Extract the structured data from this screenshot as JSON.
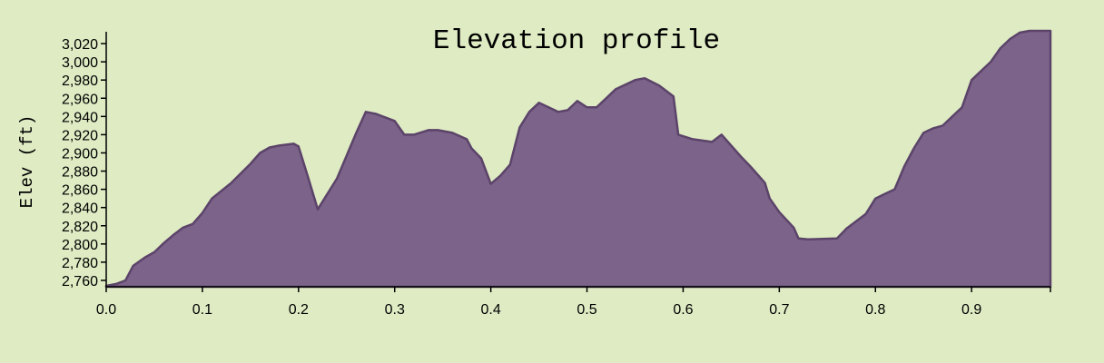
{
  "chart_data": {
    "type": "area",
    "title": "Elevation profile",
    "xlabel": "",
    "ylabel": "Elev (ft)",
    "xlim": [
      0,
      0.982
    ],
    "ylim": [
      2753,
      3033
    ],
    "grid": false,
    "x_ticks": [
      "0.0",
      "0.1",
      "0.2",
      "0.3",
      "0.4",
      "0.5",
      "0.6",
      "0.7",
      "0.8",
      "0.9"
    ],
    "x_tick_values": [
      0,
      0.1,
      0.2,
      0.3,
      0.4,
      0.5,
      0.6,
      0.7,
      0.8,
      0.9
    ],
    "y_ticks": [
      "2,760",
      "2,780",
      "2,800",
      "2,820",
      "2,840",
      "2,860",
      "2,880",
      "2,900",
      "2,920",
      "2,940",
      "2,960",
      "2,980",
      "3,000",
      "3,020"
    ],
    "y_tick_values": [
      2760,
      2780,
      2800,
      2820,
      2840,
      2860,
      2880,
      2900,
      2920,
      2940,
      2960,
      2980,
      3000,
      3020
    ],
    "colors": {
      "fill": "#7b6389",
      "stroke": "#5b4369",
      "background": "#deebc3"
    },
    "series": [
      {
        "x": [
          0.0,
          0.01,
          0.02,
          0.028,
          0.04,
          0.05,
          0.06,
          0.07,
          0.08,
          0.09,
          0.1,
          0.11,
          0.13,
          0.15,
          0.16,
          0.17,
          0.18,
          0.195,
          0.2,
          0.21,
          0.22,
          0.24,
          0.26,
          0.27,
          0.28,
          0.295,
          0.3,
          0.31,
          0.32,
          0.335,
          0.345,
          0.36,
          0.375,
          0.38,
          0.39,
          0.4,
          0.41,
          0.42,
          0.43,
          0.44,
          0.45,
          0.47,
          0.48,
          0.49,
          0.5,
          0.51,
          0.52,
          0.53,
          0.55,
          0.56,
          0.575,
          0.58,
          0.59,
          0.595,
          0.61,
          0.63,
          0.64,
          0.66,
          0.67,
          0.685,
          0.69,
          0.7,
          0.715,
          0.72,
          0.73,
          0.76,
          0.77,
          0.79,
          0.8,
          0.81,
          0.82,
          0.83,
          0.84,
          0.85,
          0.86,
          0.87,
          0.88,
          0.89,
          0.9,
          0.91,
          0.92,
          0.93,
          0.94,
          0.95,
          0.96,
          0.97,
          0.975,
          0.982
        ],
        "y": [
          2754,
          2756,
          2760,
          2776,
          2785,
          2791,
          2801,
          2810,
          2818,
          2822,
          2834,
          2850,
          2867,
          2888,
          2900,
          2906,
          2908,
          2910,
          2907,
          2873,
          2838,
          2872,
          2922,
          2945,
          2943,
          2937,
          2935,
          2920,
          2920,
          2925,
          2925,
          2922,
          2915,
          2905,
          2894,
          2866,
          2875,
          2887,
          2928,
          2945,
          2955,
          2945,
          2947,
          2957,
          2950,
          2950,
          2960,
          2970,
          2980,
          2982,
          2974,
          2970,
          2962,
          2920,
          2915,
          2912,
          2920,
          2896,
          2885,
          2867,
          2850,
          2835,
          2818,
          2806,
          2805,
          2806,
          2817,
          2833,
          2850,
          2855,
          2860,
          2885,
          2905,
          2922,
          2927,
          2930,
          2940,
          2950,
          2980,
          2990,
          3000,
          3015,
          3025,
          3032,
          3034,
          3034,
          3034,
          3034
        ]
      }
    ]
  }
}
